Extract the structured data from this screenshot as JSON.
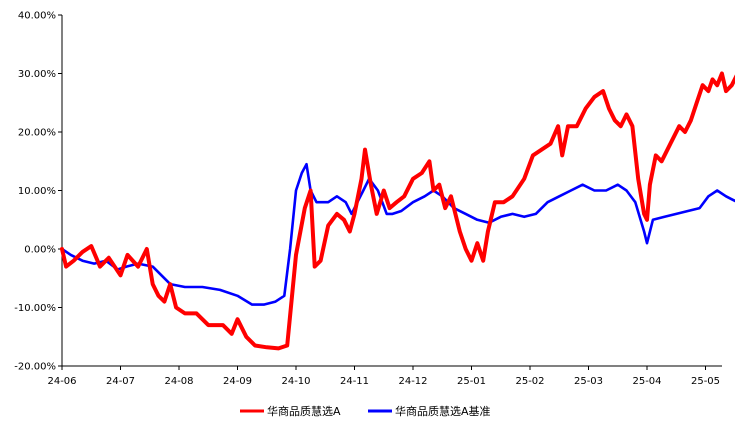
{
  "chart_data": {
    "type": "line",
    "title": "",
    "xlabel": "",
    "ylabel": "",
    "ylim": [
      -0.2,
      0.4
    ],
    "y_ticks": [
      {
        "value": -0.2,
        "label": "-20.00%"
      },
      {
        "value": -0.1,
        "label": "-10.00%"
      },
      {
        "value": 0.0,
        "label": "0.00%"
      },
      {
        "value": 0.1,
        "label": "10.00%"
      },
      {
        "value": 0.2,
        "label": "20.00%"
      },
      {
        "value": 0.3,
        "label": "30.00%"
      },
      {
        "value": 0.4,
        "label": "40.00%"
      }
    ],
    "x_ticks": [
      "24-06",
      "24-07",
      "24-08",
      "24-09",
      "24-10",
      "24-11",
      "24-12",
      "25-01",
      "25-02",
      "25-03",
      "25-04",
      "25-05"
    ],
    "grid": false,
    "legend_position": "bottom",
    "series": [
      {
        "name": "华商品质慧选A",
        "color": "#ff0000",
        "points": [
          [
            0.0,
            0.0
          ],
          [
            0.07,
            -0.03
          ],
          [
            0.2,
            -0.02
          ],
          [
            0.35,
            -0.005
          ],
          [
            0.5,
            0.005
          ],
          [
            0.65,
            -0.03
          ],
          [
            0.8,
            -0.015
          ],
          [
            1.0,
            -0.045
          ],
          [
            1.12,
            -0.01
          ],
          [
            1.3,
            -0.03
          ],
          [
            1.45,
            0.0
          ],
          [
            1.55,
            -0.06
          ],
          [
            1.65,
            -0.08
          ],
          [
            1.75,
            -0.09
          ],
          [
            1.85,
            -0.06
          ],
          [
            1.95,
            -0.1
          ],
          [
            2.1,
            -0.11
          ],
          [
            2.3,
            -0.11
          ],
          [
            2.5,
            -0.13
          ],
          [
            2.75,
            -0.13
          ],
          [
            2.9,
            -0.145
          ],
          [
            3.0,
            -0.12
          ],
          [
            3.15,
            -0.15
          ],
          [
            3.3,
            -0.165
          ],
          [
            3.5,
            -0.168
          ],
          [
            3.7,
            -0.17
          ],
          [
            3.85,
            -0.165
          ],
          [
            4.0,
            -0.01
          ],
          [
            4.15,
            0.07
          ],
          [
            4.25,
            0.1
          ],
          [
            4.32,
            -0.03
          ],
          [
            4.42,
            -0.02
          ],
          [
            4.55,
            0.04
          ],
          [
            4.7,
            0.06
          ],
          [
            4.82,
            0.05
          ],
          [
            4.92,
            0.03
          ],
          [
            5.0,
            0.06
          ],
          [
            5.12,
            0.12
          ],
          [
            5.18,
            0.17
          ],
          [
            5.28,
            0.11
          ],
          [
            5.38,
            0.06
          ],
          [
            5.5,
            0.1
          ],
          [
            5.6,
            0.07
          ],
          [
            5.72,
            0.08
          ],
          [
            5.85,
            0.09
          ],
          [
            6.0,
            0.12
          ],
          [
            6.15,
            0.13
          ],
          [
            6.28,
            0.15
          ],
          [
            6.35,
            0.1
          ],
          [
            6.45,
            0.11
          ],
          [
            6.55,
            0.07
          ],
          [
            6.65,
            0.09
          ],
          [
            6.8,
            0.03
          ],
          [
            6.9,
            0.0
          ],
          [
            7.0,
            -0.02
          ],
          [
            7.1,
            0.01
          ],
          [
            7.2,
            -0.02
          ],
          [
            7.28,
            0.03
          ],
          [
            7.4,
            0.08
          ],
          [
            7.55,
            0.08
          ],
          [
            7.7,
            0.09
          ],
          [
            7.9,
            0.12
          ],
          [
            8.05,
            0.16
          ],
          [
            8.2,
            0.17
          ],
          [
            8.35,
            0.18
          ],
          [
            8.48,
            0.21
          ],
          [
            8.55,
            0.16
          ],
          [
            8.65,
            0.21
          ],
          [
            8.8,
            0.21
          ],
          [
            8.95,
            0.24
          ],
          [
            9.1,
            0.26
          ],
          [
            9.25,
            0.27
          ],
          [
            9.35,
            0.24
          ],
          [
            9.45,
            0.22
          ],
          [
            9.55,
            0.21
          ],
          [
            9.65,
            0.23
          ],
          [
            9.75,
            0.21
          ],
          [
            9.85,
            0.12
          ],
          [
            9.95,
            0.06
          ],
          [
            10.0,
            0.05
          ],
          [
            10.05,
            0.11
          ],
          [
            10.15,
            0.16
          ],
          [
            10.25,
            0.15
          ],
          [
            10.4,
            0.18
          ],
          [
            10.55,
            0.21
          ],
          [
            10.65,
            0.2
          ],
          [
            10.75,
            0.22
          ],
          [
            10.85,
            0.25
          ],
          [
            10.95,
            0.28
          ],
          [
            11.05,
            0.27
          ],
          [
            11.12,
            0.29
          ],
          [
            11.2,
            0.28
          ],
          [
            11.28,
            0.3
          ],
          [
            11.35,
            0.27
          ],
          [
            11.45,
            0.28
          ],
          [
            11.55,
            0.3
          ]
        ]
      },
      {
        "name": "华商品质慧选A基准",
        "color": "#0000ff",
        "points": [
          [
            0.0,
            0.0
          ],
          [
            0.15,
            -0.01
          ],
          [
            0.35,
            -0.02
          ],
          [
            0.55,
            -0.025
          ],
          [
            0.75,
            -0.02
          ],
          [
            0.95,
            -0.035
          ],
          [
            1.1,
            -0.03
          ],
          [
            1.3,
            -0.025
          ],
          [
            1.55,
            -0.03
          ],
          [
            1.85,
            -0.06
          ],
          [
            2.1,
            -0.065
          ],
          [
            2.4,
            -0.065
          ],
          [
            2.7,
            -0.07
          ],
          [
            3.0,
            -0.08
          ],
          [
            3.25,
            -0.095
          ],
          [
            3.45,
            -0.095
          ],
          [
            3.65,
            -0.09
          ],
          [
            3.8,
            -0.08
          ],
          [
            3.9,
            0.0
          ],
          [
            4.0,
            0.1
          ],
          [
            4.1,
            0.13
          ],
          [
            4.18,
            0.145
          ],
          [
            4.25,
            0.1
          ],
          [
            4.35,
            0.08
          ],
          [
            4.45,
            0.08
          ],
          [
            4.55,
            0.08
          ],
          [
            4.7,
            0.09
          ],
          [
            4.85,
            0.08
          ],
          [
            4.95,
            0.06
          ],
          [
            5.05,
            0.08
          ],
          [
            5.15,
            0.1
          ],
          [
            5.25,
            0.12
          ],
          [
            5.4,
            0.1
          ],
          [
            5.55,
            0.06
          ],
          [
            5.65,
            0.06
          ],
          [
            5.8,
            0.065
          ],
          [
            6.0,
            0.08
          ],
          [
            6.2,
            0.09
          ],
          [
            6.35,
            0.1
          ],
          [
            6.5,
            0.09
          ],
          [
            6.7,
            0.07
          ],
          [
            6.9,
            0.06
          ],
          [
            7.1,
            0.05
          ],
          [
            7.3,
            0.045
          ],
          [
            7.5,
            0.055
          ],
          [
            7.7,
            0.06
          ],
          [
            7.9,
            0.055
          ],
          [
            8.1,
            0.06
          ],
          [
            8.3,
            0.08
          ],
          [
            8.5,
            0.09
          ],
          [
            8.7,
            0.1
          ],
          [
            8.9,
            0.11
          ],
          [
            9.1,
            0.1
          ],
          [
            9.3,
            0.1
          ],
          [
            9.5,
            0.11
          ],
          [
            9.65,
            0.1
          ],
          [
            9.8,
            0.08
          ],
          [
            9.95,
            0.03
          ],
          [
            10.0,
            0.01
          ],
          [
            10.1,
            0.05
          ],
          [
            10.3,
            0.055
          ],
          [
            10.5,
            0.06
          ],
          [
            10.7,
            0.065
          ],
          [
            10.9,
            0.07
          ],
          [
            11.05,
            0.09
          ],
          [
            11.2,
            0.1
          ],
          [
            11.35,
            0.09
          ],
          [
            11.45,
            0.085
          ],
          [
            11.55,
            0.08
          ]
        ]
      }
    ]
  }
}
